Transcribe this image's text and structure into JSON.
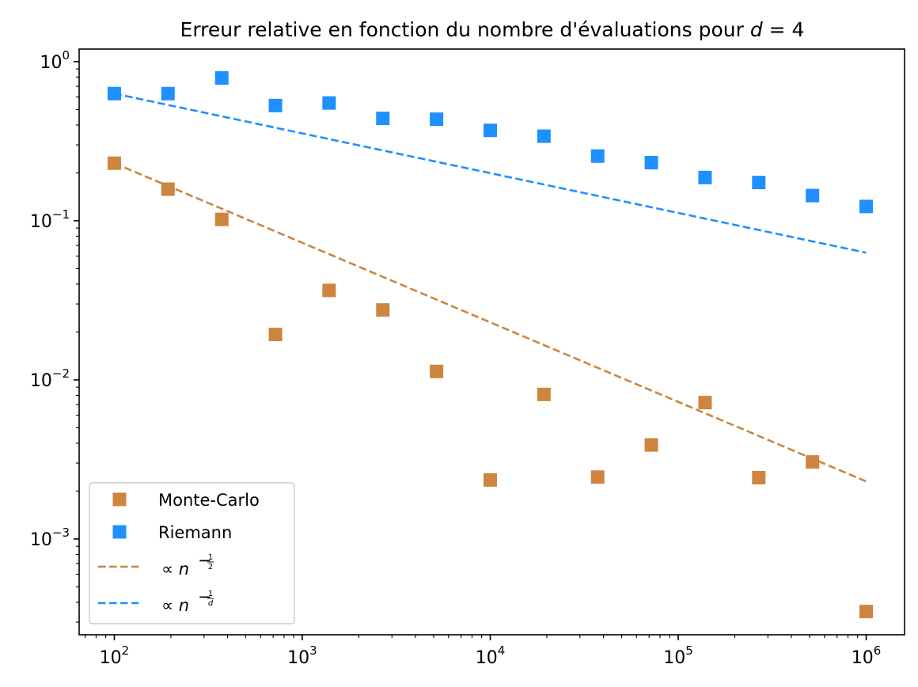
{
  "chart_data": {
    "type": "scatter",
    "title": "Erreur relative en fonction du nombre d'évaluations pour d = 4",
    "title_math": {
      "prefix": "Erreur relative en fonction du nombre d'évaluations pour ",
      "variable": "d",
      "equals": " = 4"
    },
    "x_scale": "log",
    "y_scale": "log",
    "xlim": [
      65,
      1600000
    ],
    "ylim": [
      0.00025,
      1.2
    ],
    "x_ticks": [
      {
        "value": 100,
        "base": "10",
        "exp": "2"
      },
      {
        "value": 1000,
        "base": "10",
        "exp": "3"
      },
      {
        "value": 10000,
        "base": "10",
        "exp": "4"
      },
      {
        "value": 100000,
        "base": "10",
        "exp": "5"
      },
      {
        "value": 1000000,
        "base": "10",
        "exp": "6"
      }
    ],
    "y_ticks": [
      {
        "value": 1,
        "base": "10",
        "exp": "0"
      },
      {
        "value": 0.1,
        "base": "10",
        "exp": "−1"
      },
      {
        "value": 0.01,
        "base": "10",
        "exp": "−2"
      },
      {
        "value": 0.001,
        "base": "10",
        "exp": "−3"
      }
    ],
    "x": [
      100,
      193,
      373,
      720,
      1389,
      2683,
      5179,
      10000,
      19307,
      37276,
      71969,
      138950,
      268270,
      517947,
      1000000
    ],
    "series": [
      {
        "name": "Monte-Carlo",
        "kind": "scatter",
        "marker": "square",
        "color": "#cd853f",
        "values": [
          0.23,
          0.158,
          0.102,
          0.0193,
          0.0365,
          0.0275,
          0.0113,
          0.00235,
          0.0081,
          0.00245,
          0.0039,
          0.0072,
          0.00243,
          0.00305,
          0.00035
        ]
      },
      {
        "name": "Riemann",
        "kind": "scatter",
        "marker": "square",
        "color": "#1e90ff",
        "values": [
          0.63,
          0.63,
          0.79,
          0.53,
          0.55,
          0.44,
          0.435,
          0.37,
          0.34,
          0.255,
          0.232,
          0.187,
          0.174,
          0.144,
          0.123
        ]
      }
    ],
    "fit_lines": [
      {
        "name": "∝ n^(−1/2)",
        "kind": "line",
        "dash": "dashed",
        "color": "#cd853f",
        "x": [
          100,
          1000000
        ],
        "y": [
          0.23,
          0.0023
        ]
      },
      {
        "name": "∝ n^(−1/d)",
        "kind": "line",
        "dash": "dashed",
        "color": "#1e90ff",
        "x": [
          100,
          1000000
        ],
        "y": [
          0.63,
          0.063
        ]
      }
    ],
    "legend": {
      "placement": "lower-left",
      "entries": [
        {
          "label": "Monte-Carlo",
          "kind": "marker",
          "color": "#cd853f"
        },
        {
          "label": "Riemann",
          "kind": "marker",
          "color": "#1e90ff"
        },
        {
          "label": "∝ n^(−1/2)",
          "label_parts": {
            "prefix": "∝ ",
            "var": "n",
            "num": "1",
            "den": "2"
          },
          "kind": "line",
          "color": "#cd853f"
        },
        {
          "label": "∝ n^(−1/d)",
          "label_parts": {
            "prefix": "∝ ",
            "var": "n",
            "num": "1",
            "den": "d"
          },
          "kind": "line",
          "color": "#1e90ff"
        }
      ]
    },
    "grid": false
  }
}
